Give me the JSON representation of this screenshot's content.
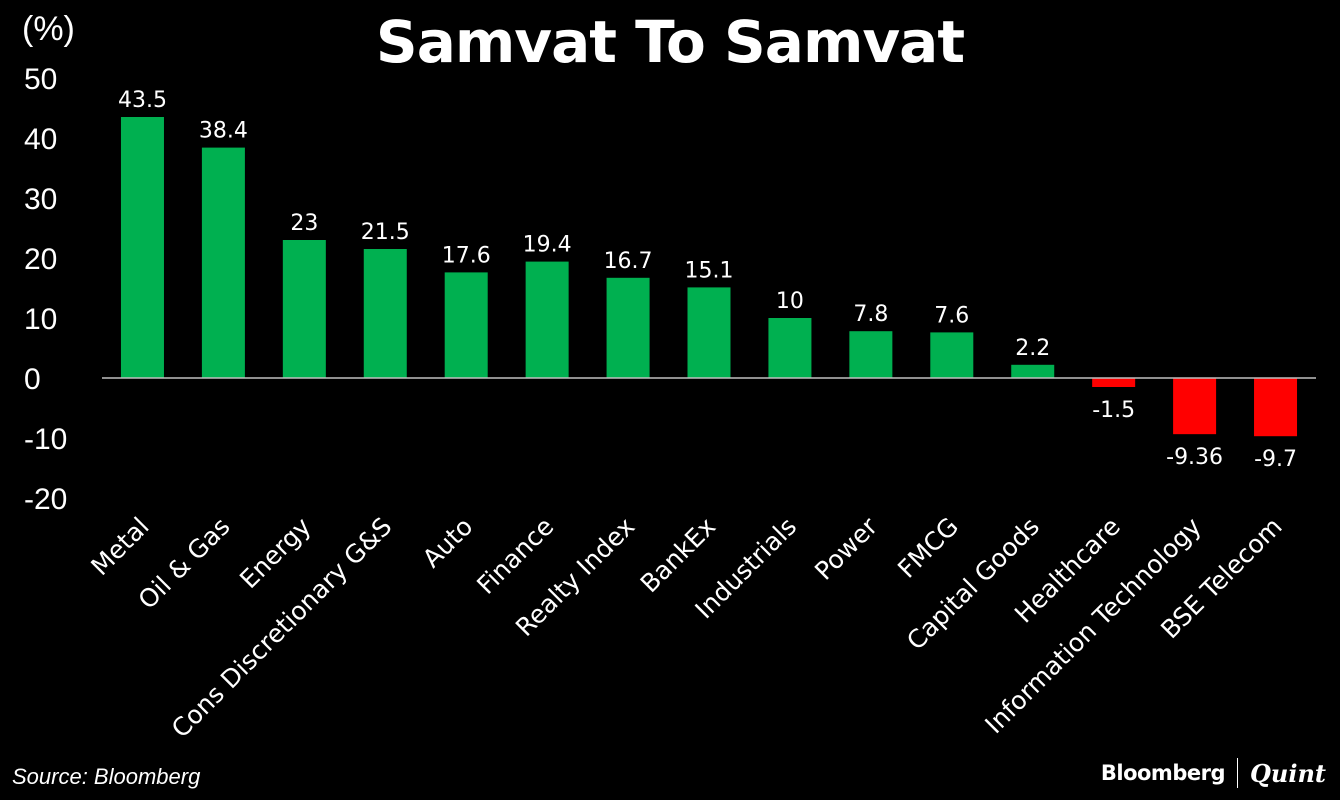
{
  "chart_data": {
    "type": "bar",
    "title": "Samvat To Samvat",
    "ylabel": "(%)",
    "ylim": [
      -20,
      50
    ],
    "yticks": [
      50,
      40,
      30,
      20,
      10,
      0,
      -10,
      -20
    ],
    "grid": false,
    "categories": [
      "Metal",
      "Oil & Gas",
      "Energy",
      "Cons Discretionary G&S",
      "Auto",
      "Finance",
      "Realty Index",
      "BankEx",
      "Industrials",
      "Power",
      "FMCG",
      "Capital Goods",
      "Healthcare",
      "Information Technology",
      "BSE Telecom"
    ],
    "values": [
      43.5,
      38.4,
      23,
      21.5,
      17.6,
      19.4,
      16.7,
      15.1,
      10,
      7.8,
      7.6,
      2.2,
      -1.5,
      -9.36,
      -9.7
    ],
    "data_labels": [
      "43.5",
      "38.4",
      "23",
      "21.5",
      "17.6",
      "19.4",
      "16.7",
      "15.1",
      "10",
      "7.8",
      "7.6",
      "2.2",
      "-1.5",
      "-9.36",
      "-9.7"
    ],
    "colors": {
      "positive": "#00b050",
      "negative": "#ff0000",
      "background": "#000000",
      "text": "#ffffff"
    }
  },
  "footer": {
    "source": "Source: Bloomberg",
    "brand_left": "Bloomberg",
    "brand_right": "Quint"
  }
}
